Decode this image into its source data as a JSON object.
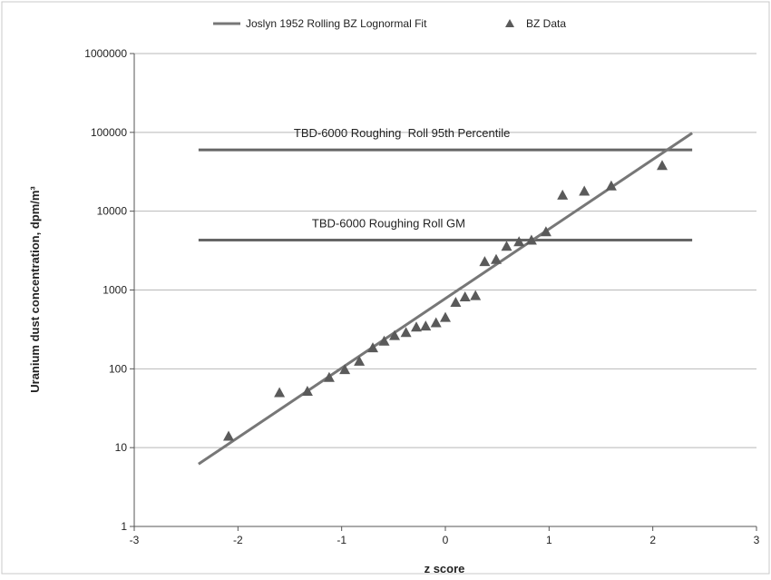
{
  "chart_data": {
    "type": "scatter",
    "title": "",
    "xlabel": "z score",
    "ylabel": "Uranium dust concentration, dpm/m³",
    "x_scale": "linear",
    "y_scale": "log",
    "xlim": [
      -3,
      3
    ],
    "ylim": [
      1,
      1000000
    ],
    "x_ticks": [
      -3,
      -2,
      -1,
      0,
      1,
      2,
      3
    ],
    "x_tick_labels": [
      "-3",
      "-2",
      "-1",
      "0",
      "1",
      "2",
      "3"
    ],
    "y_ticks": [
      1,
      10,
      100,
      1000,
      10000,
      100000,
      1000000
    ],
    "y_tick_labels": [
      "1",
      "10",
      "100",
      "1000",
      "10000",
      "100000",
      "1000000"
    ],
    "grid": "horizontal",
    "legend_position": "top",
    "legend": [
      {
        "label": "Joslyn 1952 Rolling BZ Lognormal Fit",
        "marker": "line"
      },
      {
        "label": "BZ Data",
        "marker": "triangle"
      }
    ],
    "series": [
      {
        "name": "BZ Data",
        "kind": "scatter",
        "marker": "triangle",
        "color": "#5a5a5a",
        "points": [
          {
            "x": -2.09,
            "y": 14
          },
          {
            "x": -1.6,
            "y": 50
          },
          {
            "x": -1.33,
            "y": 52
          },
          {
            "x": -1.12,
            "y": 78
          },
          {
            "x": -0.97,
            "y": 98
          },
          {
            "x": -0.83,
            "y": 125
          },
          {
            "x": -0.7,
            "y": 185
          },
          {
            "x": -0.59,
            "y": 225
          },
          {
            "x": -0.49,
            "y": 265
          },
          {
            "x": -0.38,
            "y": 290
          },
          {
            "x": -0.28,
            "y": 340
          },
          {
            "x": -0.19,
            "y": 350
          },
          {
            "x": -0.09,
            "y": 385
          },
          {
            "x": 0.0,
            "y": 450
          },
          {
            "x": 0.1,
            "y": 700
          },
          {
            "x": 0.19,
            "y": 820
          },
          {
            "x": 0.29,
            "y": 850
          },
          {
            "x": 0.38,
            "y": 2300
          },
          {
            "x": 0.49,
            "y": 2450
          },
          {
            "x": 0.59,
            "y": 3600
          },
          {
            "x": 0.71,
            "y": 4100
          },
          {
            "x": 0.83,
            "y": 4300
          },
          {
            "x": 0.97,
            "y": 5500
          },
          {
            "x": 1.13,
            "y": 16000
          },
          {
            "x": 1.34,
            "y": 18000
          },
          {
            "x": 1.6,
            "y": 21000
          },
          {
            "x": 2.09,
            "y": 38000
          }
        ]
      },
      {
        "name": "Joslyn 1952 Rolling BZ Lognormal Fit",
        "kind": "line",
        "color": "#777777",
        "points": [
          {
            "x": -2.38,
            "y": 6.2
          },
          {
            "x": 2.38,
            "y": 98000
          }
        ]
      }
    ],
    "reference_lines": [
      {
        "label": "TBD-6000 Roughing  Roll 95th Percentile",
        "y": 60000,
        "x_range": [
          -2.38,
          2.38
        ],
        "color": "#666666"
      },
      {
        "label": "TBD-6000 Roughing Roll GM",
        "y": 4300,
        "x_range": [
          -2.38,
          2.38
        ],
        "color": "#666666"
      }
    ]
  }
}
